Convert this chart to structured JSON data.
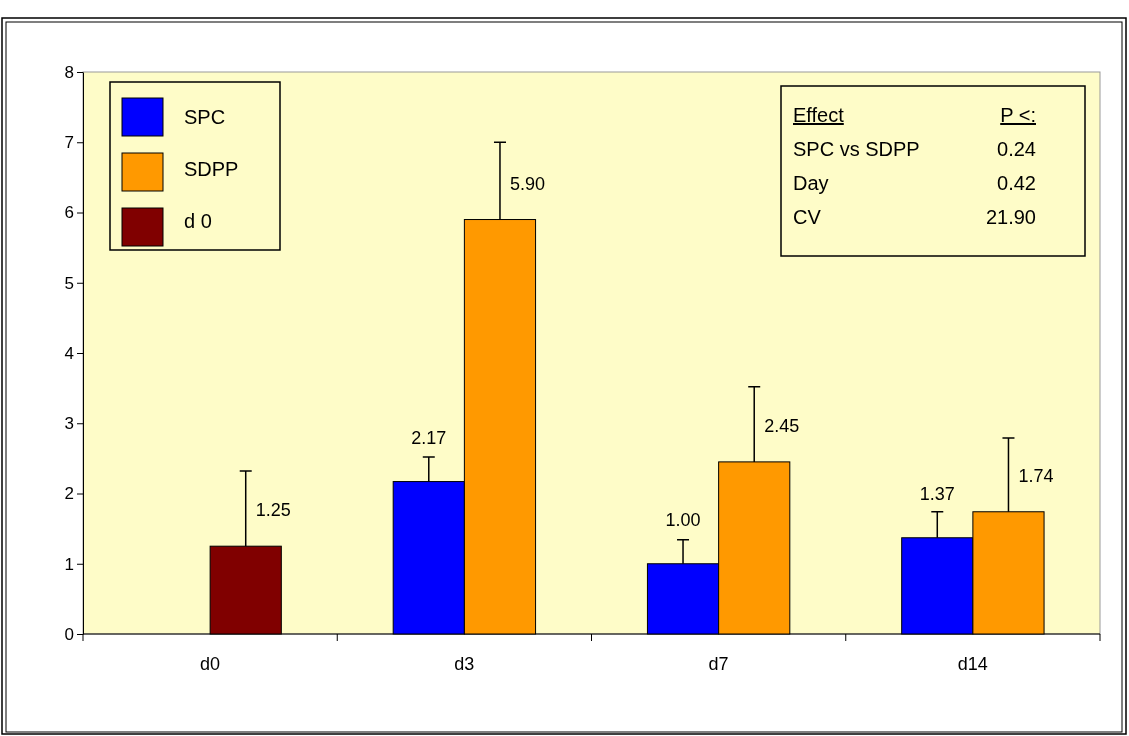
{
  "chart_data": {
    "type": "bar",
    "categories": [
      "d0",
      "d3",
      "d7",
      "d14"
    ],
    "series": [
      {
        "name": "SPC",
        "color": "#0000ff",
        "values": [
          null,
          2.17,
          1.0,
          1.37
        ],
        "errors": [
          null,
          [
            2.17,
            2.52
          ],
          [
            1.0,
            1.34
          ],
          [
            1.37,
            1.74
          ]
        ],
        "value_labels": [
          null,
          "2.17",
          "1.00",
          "1.37"
        ]
      },
      {
        "name": "SDPP",
        "color": "#ff9900",
        "values": [
          null,
          5.9,
          2.45,
          1.74
        ],
        "errors": [
          null,
          [
            5.9,
            7.0
          ],
          [
            2.45,
            3.52
          ],
          [
            1.74,
            2.79
          ]
        ],
        "value_labels": [
          null,
          "5.90",
          "2.45",
          "1.74"
        ]
      },
      {
        "name": "d 0",
        "color": "#800000",
        "values": [
          1.25,
          null,
          null,
          null
        ],
        "errors": [
          [
            1.25,
            2.32
          ],
          null,
          null,
          null
        ],
        "value_labels": [
          "1.25",
          null,
          null,
          null
        ]
      }
    ],
    "ylim": [
      0,
      8
    ],
    "yticks": [
      0,
      1,
      2,
      3,
      4,
      5,
      6,
      7,
      8
    ],
    "grid": false,
    "legend": "top left",
    "annotations": [
      "Effect",
      "P <:",
      "SPC vs SDPP",
      "0.24",
      "Day",
      "0.42",
      "CV",
      "21.90"
    ]
  }
}
